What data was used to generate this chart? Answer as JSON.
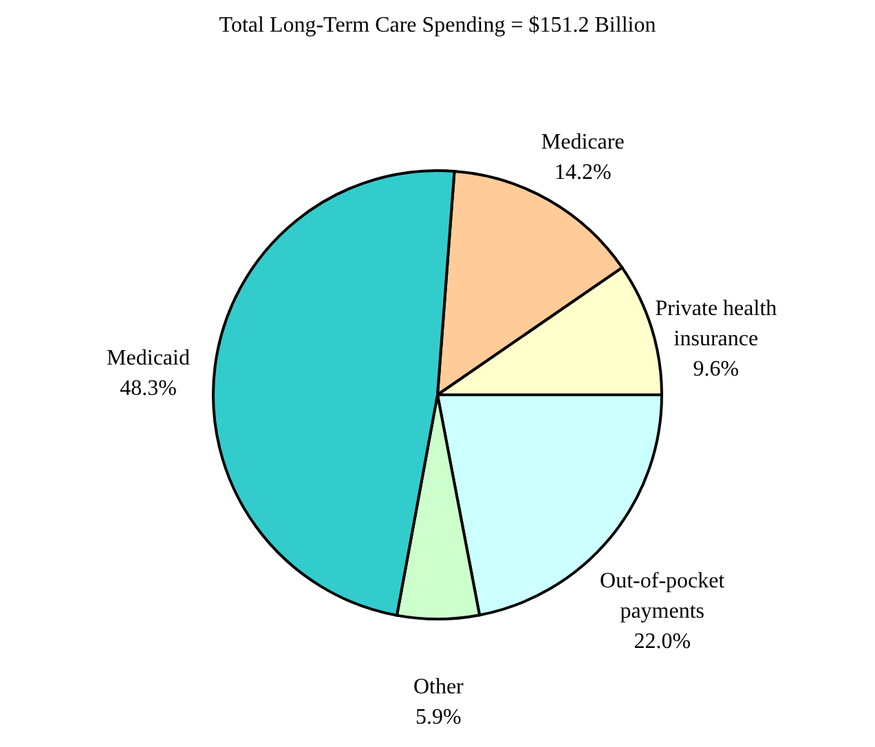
{
  "chart_data": {
    "type": "pie",
    "title": "Total Long-Term Care Spending = $151.2 Billion",
    "categories": [
      "Medicare",
      "Private health insurance",
      "Out-of-pocket payments",
      "Other",
      "Medicaid"
    ],
    "values": [
      14.2,
      9.6,
      22.0,
      5.9,
      48.3
    ],
    "colors": [
      "#ffcc99",
      "#ffffcc",
      "#ccffff",
      "#ccffcc",
      "#33cccc"
    ],
    "value_labels": [
      "14.2%",
      "9.6%",
      "22.0%",
      "5.9%",
      "48.3%"
    ]
  }
}
